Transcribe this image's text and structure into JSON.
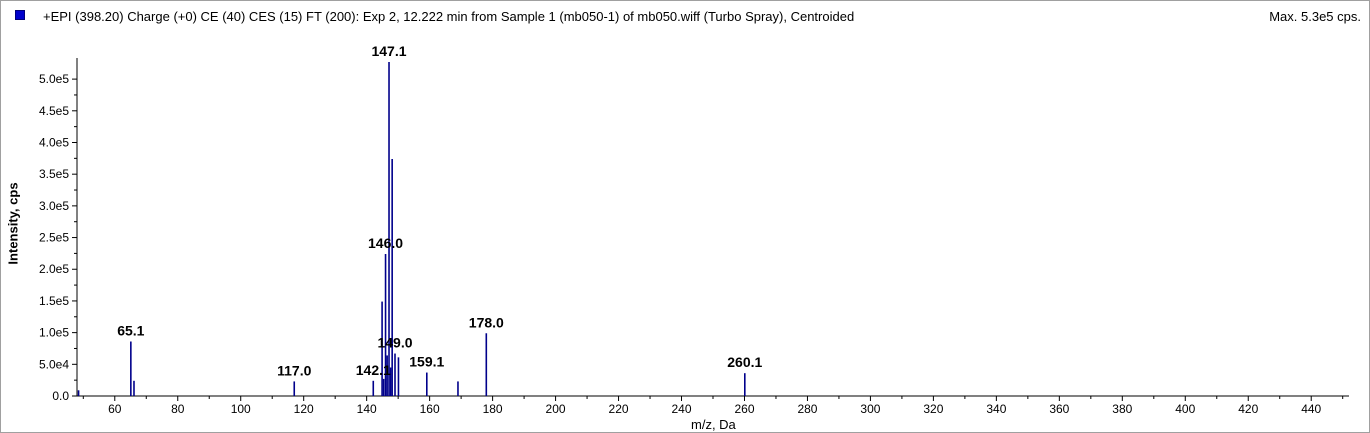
{
  "header": {
    "title": "+EPI (398.20) Charge (+0) CE (40) CES (15) FT (200): Exp 2, 12.222 min from Sample 1 (mb050-1) of mb050.wiff (Turbo Spray), Centroided",
    "max": "Max. 5.3e5 cps."
  },
  "colors": {
    "series": "#00008b",
    "legend_swatch": "#0000cc"
  },
  "chart_data": {
    "type": "bar",
    "title": "+EPI (398.20) Charge (+0) CE (40) CES (15) FT (200): Exp 2, 12.222 min from Sample 1 (mb050-1) of mb050.wiff (Turbo Spray), Centroided",
    "xlabel": "m/z, Da",
    "ylabel": "Intensity, cps",
    "xlim": [
      48,
      452
    ],
    "ylim": [
      0,
      527000
    ],
    "xticks": [
      60,
      80,
      100,
      120,
      140,
      160,
      180,
      200,
      220,
      240,
      260,
      280,
      300,
      320,
      340,
      360,
      380,
      400,
      420,
      440
    ],
    "yticks": [
      "0.0",
      "5.0e4",
      "1.0e5",
      "1.5e5",
      "2.0e5",
      "2.5e5",
      "3.0e5",
      "3.5e5",
      "4.0e5",
      "4.5e5",
      "5.0e5"
    ],
    "ytick_values": [
      0,
      50000,
      100000,
      150000,
      200000,
      250000,
      300000,
      350000,
      400000,
      450000,
      500000
    ],
    "grid": false,
    "legend": "top-left",
    "peaks": [
      {
        "mz": 48.5,
        "intensity": 9000
      },
      {
        "mz": 65.1,
        "intensity": 86000
      },
      {
        "mz": 66.1,
        "intensity": 24000
      },
      {
        "mz": 117.0,
        "intensity": 23000
      },
      {
        "mz": 142.1,
        "intensity": 24000
      },
      {
        "mz": 144.9,
        "intensity": 149000
      },
      {
        "mz": 145.4,
        "intensity": 27000
      },
      {
        "mz": 146.0,
        "intensity": 224000
      },
      {
        "mz": 146.5,
        "intensity": 64000
      },
      {
        "mz": 147.1,
        "intensity": 527000
      },
      {
        "mz": 147.6,
        "intensity": 45000
      },
      {
        "mz": 148.1,
        "intensity": 374000
      },
      {
        "mz": 149.0,
        "intensity": 67000
      },
      {
        "mz": 150.1,
        "intensity": 61000
      },
      {
        "mz": 159.1,
        "intensity": 37000
      },
      {
        "mz": 169.0,
        "intensity": 23000
      },
      {
        "mz": 178.0,
        "intensity": 99000
      },
      {
        "mz": 260.1,
        "intensity": 36000
      }
    ],
    "annotations": [
      {
        "label": "147.1",
        "mz": 147.1,
        "intensity": 527000
      },
      {
        "label": "146.0",
        "mz": 146.0,
        "intensity": 224000
      },
      {
        "label": "65.1",
        "mz": 65.1,
        "intensity": 86000
      },
      {
        "label": "178.0",
        "mz": 178.0,
        "intensity": 99000
      },
      {
        "label": "149.0",
        "mz": 149.0,
        "intensity": 67000
      },
      {
        "label": "117.0",
        "mz": 117.0,
        "intensity": 23000
      },
      {
        "label": "142.1",
        "mz": 142.1,
        "intensity": 24000
      },
      {
        "label": "159.1",
        "mz": 159.1,
        "intensity": 37000
      },
      {
        "label": "260.1",
        "mz": 260.1,
        "intensity": 36000
      }
    ]
  }
}
